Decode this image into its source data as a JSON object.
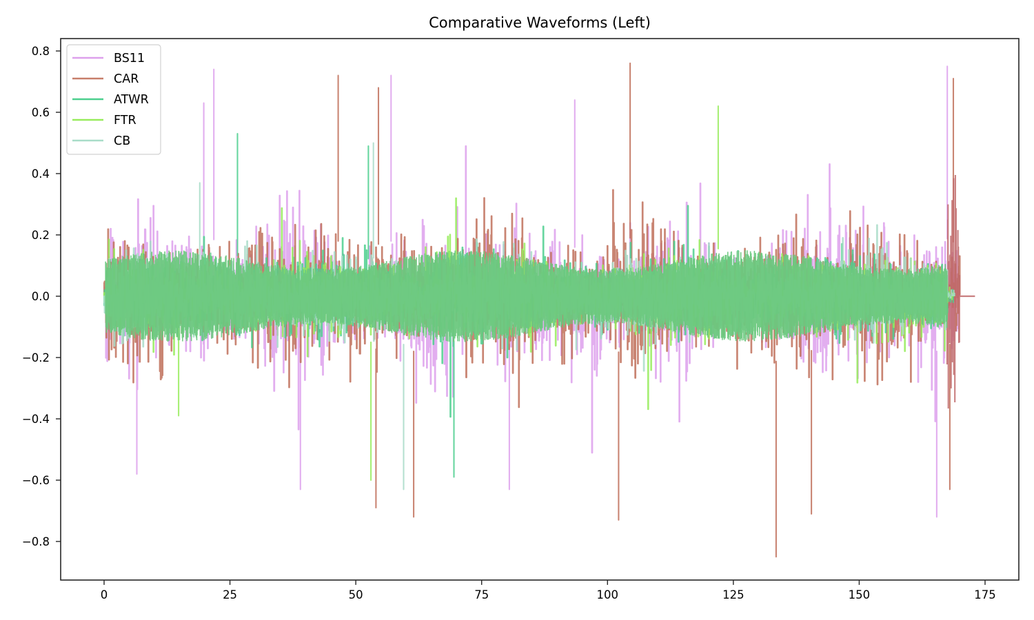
{
  "chart_data": {
    "type": "line",
    "title": "Comparative Waveforms (Left)",
    "xlabel": "",
    "ylabel": "",
    "xlim": [
      -8.5,
      181.5
    ],
    "ylim": [
      -0.92,
      0.84
    ],
    "xticks": [
      0,
      25,
      50,
      75,
      100,
      125,
      150,
      175
    ],
    "xtick_labels": [
      "0",
      "25",
      "50",
      "75",
      "100",
      "125",
      "150",
      "175"
    ],
    "yticks": [
      0.8,
      0.6,
      0.4,
      0.2,
      0.0,
      -0.2,
      -0.4,
      -0.6,
      -0.8
    ],
    "ytick_labels": [
      "0.8",
      "0.6",
      "0.4",
      "0.2",
      "0.0",
      "−0.2",
      "−0.4",
      "−0.6",
      "−0.8"
    ],
    "grid": false,
    "legend_position": "upper left",
    "series": [
      {
        "name": "BS11",
        "color": "#dda0ec",
        "alpha": 0.85,
        "x_start": 0,
        "x_end": 169.8,
        "typical_amplitude": 0.3,
        "max": 0.75,
        "min": -0.72,
        "notable_peaks": [
          [
            21.8,
            0.74
          ],
          [
            19.8,
            0.63
          ],
          [
            57.0,
            0.72
          ],
          [
            93.5,
            0.64
          ],
          [
            167.5,
            0.75
          ],
          [
            165.4,
            -0.72
          ],
          [
            80.5,
            -0.63
          ],
          [
            39.0,
            -0.63
          ],
          [
            6.5,
            -0.58
          ]
        ]
      },
      {
        "name": "CAR",
        "color": "#c0705a",
        "alpha": 0.85,
        "x_start": 0,
        "x_end": 173.0,
        "typical_amplitude": 0.28,
        "max": 0.76,
        "min": -0.85,
        "notable_peaks": [
          [
            104.5,
            0.76
          ],
          [
            46.5,
            0.72
          ],
          [
            54.5,
            0.68
          ],
          [
            168.7,
            0.71
          ],
          [
            133.5,
            -0.85
          ],
          [
            102.2,
            -0.73
          ],
          [
            54.0,
            -0.69
          ],
          [
            61.5,
            -0.72
          ],
          [
            168.0,
            -0.63
          ],
          [
            140.5,
            -0.71
          ]
        ]
      },
      {
        "name": "ATWR",
        "color": "#4ccf8e",
        "alpha": 0.85,
        "x_start": 0,
        "x_end": 169.0,
        "typical_amplitude": 0.18,
        "max": 0.53,
        "min": -0.59,
        "notable_peaks": [
          [
            26.5,
            0.53
          ],
          [
            52.5,
            0.49
          ],
          [
            69.5,
            -0.59
          ]
        ]
      },
      {
        "name": "FTR",
        "color": "#97ec5c",
        "alpha": 0.85,
        "x_start": 0,
        "x_end": 169.0,
        "typical_amplitude": 0.17,
        "max": 0.62,
        "min": -0.6,
        "notable_peaks": [
          [
            122.0,
            0.62
          ],
          [
            53.0,
            -0.6
          ],
          [
            14.8,
            -0.39
          ]
        ]
      },
      {
        "name": "CB",
        "color": "#a8dcc8",
        "alpha": 0.85,
        "x_start": 0,
        "x_end": 169.0,
        "typical_amplitude": 0.18,
        "max": 0.5,
        "min": -0.63,
        "notable_peaks": [
          [
            53.5,
            0.5
          ],
          [
            59.5,
            -0.63
          ],
          [
            19.0,
            0.37
          ]
        ]
      }
    ],
    "notes": "Dense audio-like waveforms overlaid; CAR extends to ~170 then flat at 0.0 until ~173. Green series dominate the central band around ±0.15."
  },
  "figure": {
    "title": "Comparative Waveforms (Left)",
    "legend": [
      {
        "label": "BS11",
        "color": "#dda0ec"
      },
      {
        "label": "CAR",
        "color": "#c77e6a"
      },
      {
        "label": "ATWR",
        "color": "#4ccf8e"
      },
      {
        "label": "FTR",
        "color": "#97ec5c"
      },
      {
        "label": "CB",
        "color": "#a8dcc8"
      }
    ],
    "core_color": "#6cc87e"
  }
}
